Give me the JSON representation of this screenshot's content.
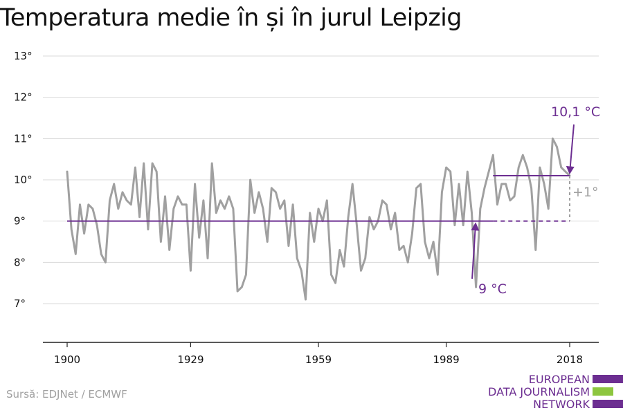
{
  "title": "Temperatura medie în și în jurul Leipzig",
  "source": "Sursă: EDJNet / ECMWF",
  "logo": {
    "lines": [
      "EUROPEAN",
      "DATA JOURNALISM",
      "NETWORK"
    ],
    "colors": {
      "purple": "#6c2e91",
      "green": "#8dc63f"
    }
  },
  "colors": {
    "temperature_line": "#a0a0a0",
    "average_line": "#6c2e91",
    "grid": "#d9d9d9",
    "axis": "#222222",
    "annotation_grey": "#a0a0a0"
  },
  "chart_data": {
    "type": "line",
    "title": "Temperatura medie în și în jurul Leipzig",
    "xlabel": "",
    "ylabel": "",
    "xlim": [
      1900,
      2018
    ],
    "ylim": [
      7,
      13
    ],
    "grid": true,
    "x_ticks": [
      1900,
      1929,
      1959,
      1989,
      2018
    ],
    "y_ticks": [
      {
        "value": 7,
        "label": "7°"
      },
      {
        "value": 8,
        "label": "8°"
      },
      {
        "value": 9,
        "label": "9°"
      },
      {
        "value": 10,
        "label": "10°"
      },
      {
        "value": 11,
        "label": "11°"
      },
      {
        "value": 12,
        "label": "12°"
      },
      {
        "value": 13,
        "label": "13°"
      }
    ],
    "series": [
      {
        "x": [
          1900,
          1901,
          1902,
          1903,
          1904,
          1905,
          1906,
          1907,
          1908,
          1909,
          1910,
          1911,
          1912,
          1913,
          1914,
          1915,
          1916,
          1917,
          1918,
          1919,
          1920,
          1921,
          1922,
          1923,
          1924,
          1925,
          1926,
          1927,
          1928,
          1929,
          1930,
          1931,
          1932,
          1933,
          1934,
          1935,
          1936,
          1937,
          1938,
          1939,
          1940,
          1941,
          1942,
          1943,
          1944,
          1945,
          1946,
          1947,
          1948,
          1949,
          1950,
          1951,
          1952,
          1953,
          1954,
          1955,
          1956,
          1957,
          1958,
          1959,
          1960,
          1961,
          1962,
          1963,
          1964,
          1965,
          1966,
          1967,
          1968,
          1969,
          1970,
          1971,
          1972,
          1973,
          1974,
          1975,
          1976,
          1977,
          1978,
          1979,
          1980,
          1981,
          1982,
          1983,
          1984,
          1985,
          1986,
          1987,
          1988,
          1989,
          1990,
          1991,
          1992,
          1993,
          1994,
          1995,
          1996,
          1997,
          1998,
          1999,
          2000,
          2001,
          2002,
          2003,
          2004,
          2005,
          2006,
          2007,
          2008,
          2009,
          2010,
          2011,
          2012,
          2013,
          2014,
          2015,
          2016,
          2017,
          2018
        ],
        "values": [
          10.2,
          8.8,
          8.2,
          9.4,
          8.7,
          9.4,
          9.3,
          8.9,
          8.2,
          8.0,
          9.5,
          9.9,
          9.3,
          9.7,
          9.5,
          9.4,
          10.3,
          9.1,
          10.4,
          8.8,
          10.4,
          10.2,
          8.5,
          9.6,
          8.3,
          9.3,
          9.6,
          9.4,
          9.4,
          7.8,
          9.9,
          8.6,
          9.5,
          8.1,
          10.4,
          9.2,
          9.5,
          9.3,
          9.6,
          9.3,
          7.3,
          7.4,
          7.7,
          10.0,
          9.2,
          9.7,
          9.3,
          8.5,
          9.8,
          9.7,
          9.3,
          9.5,
          8.4,
          9.4,
          8.1,
          7.8,
          7.1,
          9.2,
          8.5,
          9.3,
          9.0,
          9.5,
          7.7,
          7.5,
          8.3,
          7.9,
          9.1,
          9.9,
          8.9,
          7.8,
          8.1,
          9.1,
          8.8,
          9.0,
          9.5,
          9.4,
          8.8,
          9.2,
          8.3,
          8.4,
          8.0,
          8.7,
          9.8,
          9.9,
          8.5,
          8.1,
          8.5,
          7.7,
          9.7,
          10.3,
          10.2,
          8.9,
          9.9,
          8.9,
          10.2,
          9.2,
          7.4,
          9.3,
          9.8,
          10.2,
          10.6,
          9.4,
          9.9,
          9.9,
          9.5,
          9.6,
          10.3,
          10.6,
          10.3,
          9.8,
          8.3,
          10.3,
          9.9,
          9.3,
          11.0,
          10.8,
          10.3,
          10.2,
          10.1
        ]
      }
    ],
    "annotations": {
      "baseline": {
        "value": 9,
        "label": "9 °C",
        "from": 1900,
        "to": 2000
      },
      "baseline_extension": {
        "value": 9,
        "from": 2000,
        "to": 2018
      },
      "recent_average": {
        "value": 10.1,
        "label": "10,1 °C",
        "from": 2000,
        "to": 2018
      },
      "difference_label": "+1°"
    }
  }
}
